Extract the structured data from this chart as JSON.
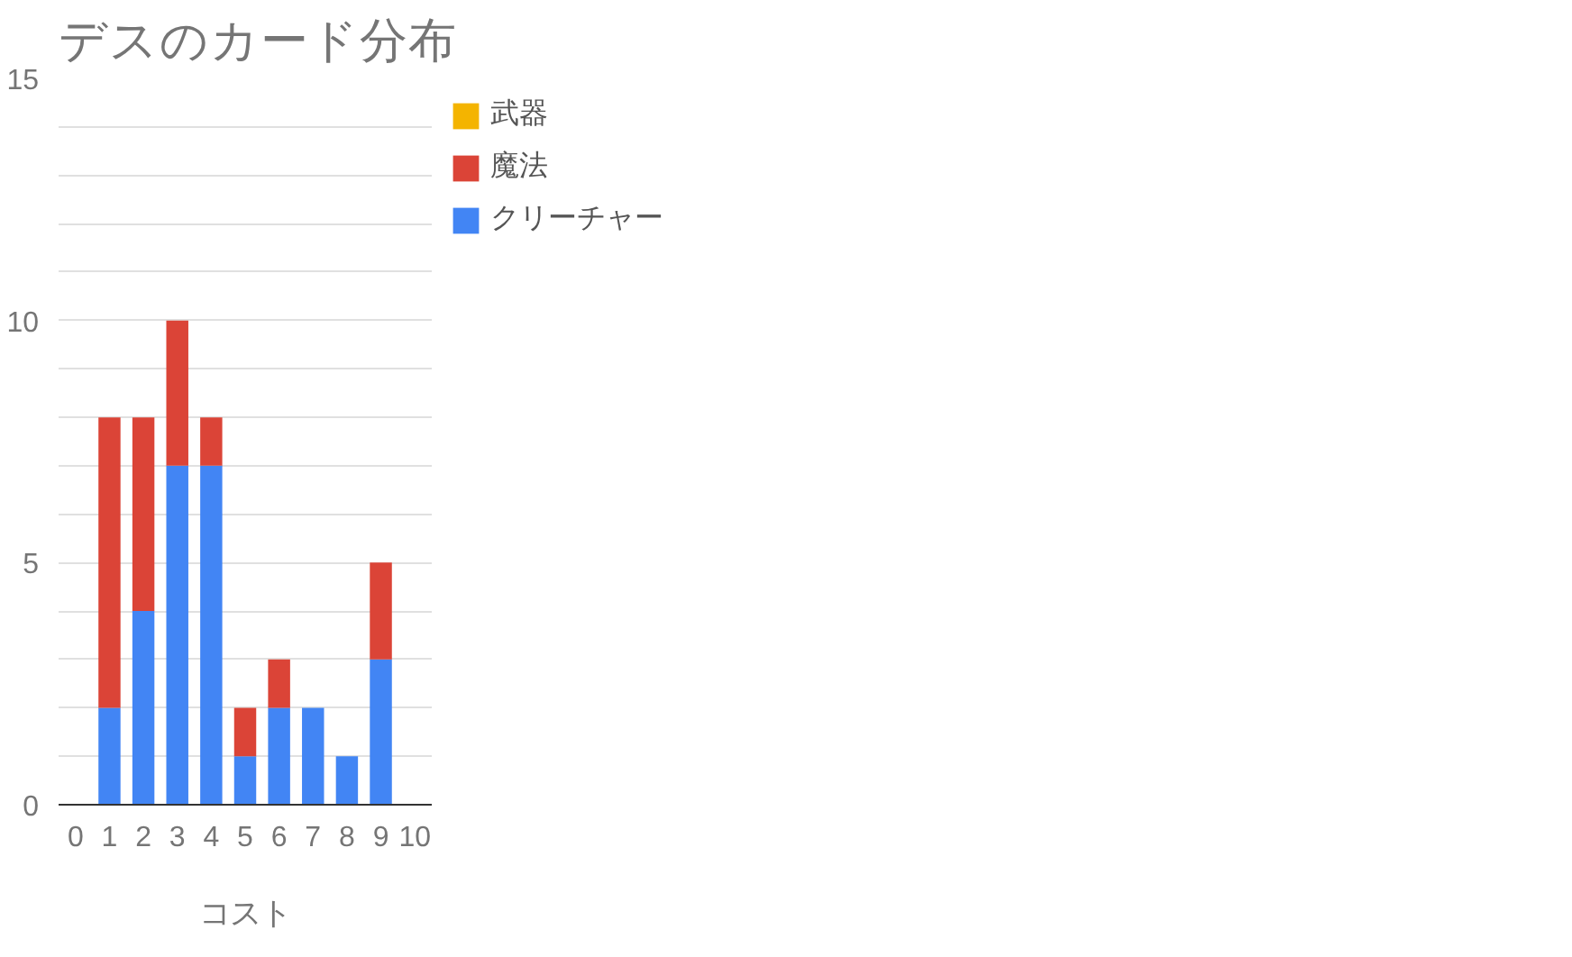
{
  "chart_data": {
    "type": "bar",
    "title": "デスのカード分布",
    "xlabel": "コスト",
    "categories": [
      "0",
      "1",
      "2",
      "3",
      "4",
      "5",
      "6",
      "7",
      "8",
      "9",
      "10"
    ],
    "stacked": true,
    "series": [
      {
        "name": "クリーチャー",
        "color": "#4285f4",
        "values": [
          0,
          2,
          4,
          7,
          7,
          1,
          2,
          2,
          1,
          3,
          0
        ]
      },
      {
        "name": "魔法",
        "color": "#db4437",
        "values": [
          0,
          6,
          4,
          3,
          1,
          1,
          1,
          0,
          0,
          2,
          0
        ]
      },
      {
        "name": "武器",
        "color": "#f4b400",
        "values": [
          0,
          0,
          0,
          0,
          0,
          0,
          0,
          0,
          0,
          0,
          0
        ]
      }
    ],
    "ylim": [
      0,
      15
    ],
    "yticks": [
      0,
      {
        "value": 1,
        "label": null
      },
      {
        "value": 2,
        "label": null
      },
      {
        "value": 3,
        "label": null
      },
      {
        "value": 4,
        "label": null
      },
      5,
      {
        "value": 6,
        "label": null
      },
      {
        "value": 7,
        "label": null
      },
      {
        "value": 8,
        "label": null
      },
      {
        "value": 9,
        "label": null
      },
      10,
      {
        "value": 11,
        "label": null
      },
      {
        "value": 12,
        "label": null
      },
      {
        "value": 13,
        "label": null
      },
      {
        "value": 14,
        "label": null
      },
      15
    ],
    "grid": "y",
    "legend": "top right"
  }
}
